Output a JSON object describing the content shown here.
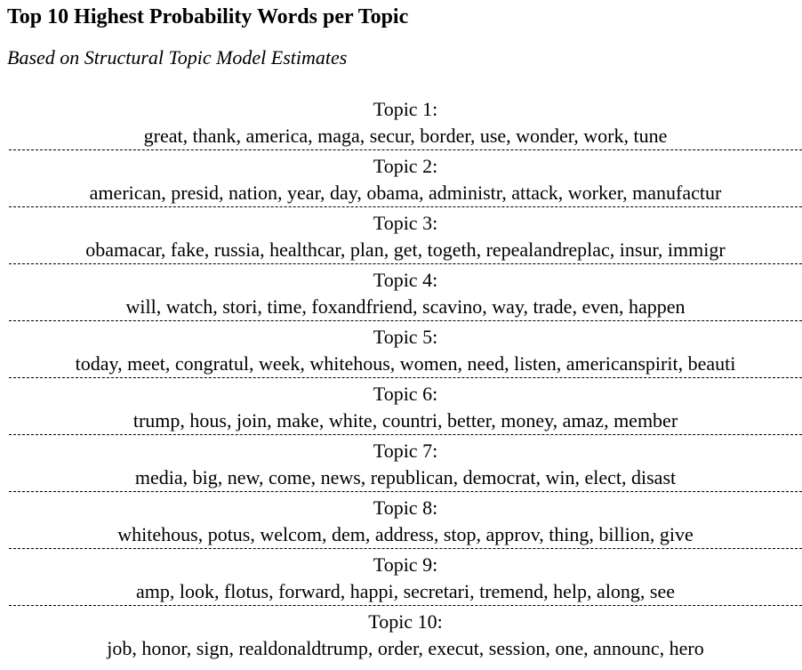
{
  "title": "Top 10 Highest Probability Words per Topic",
  "subtitle": "Based on Structural Topic Model Estimates",
  "topics": [
    {
      "label": "Topic 1:",
      "words": "great, thank, america, maga, secur, border, use, wonder, work, tune"
    },
    {
      "label": "Topic 2:",
      "words": "american, presid, nation, year, day, obama, administr, attack, worker, manufactur"
    },
    {
      "label": "Topic 3:",
      "words": "obamacar, fake, russia, healthcar, plan, get, togeth, repealandreplac, insur, immigr"
    },
    {
      "label": "Topic 4:",
      "words": "will, watch, stori, time, foxandfriend, scavino, way, trade, even, happen"
    },
    {
      "label": "Topic 5:",
      "words": "today, meet, congratul, week, whitehous, women, need, listen, americanspirit, beauti"
    },
    {
      "label": "Topic 6:",
      "words": "trump, hous, join, make, white, countri, better, money, amaz, member"
    },
    {
      "label": "Topic 7:",
      "words": "media, big, new, come, news, republican, democrat, win, elect, disast"
    },
    {
      "label": "Topic 8:",
      "words": "whitehous, potus, welcom, dem, address, stop, approv, thing, billion, give"
    },
    {
      "label": "Topic 9:",
      "words": "amp, look, flotus, forward, happi, secretari, tremend, help, along, see"
    },
    {
      "label": "Topic 10:",
      "words": "job, honor, sign, realdonaldtrump, order, execut, session, one, announc, hero"
    }
  ]
}
